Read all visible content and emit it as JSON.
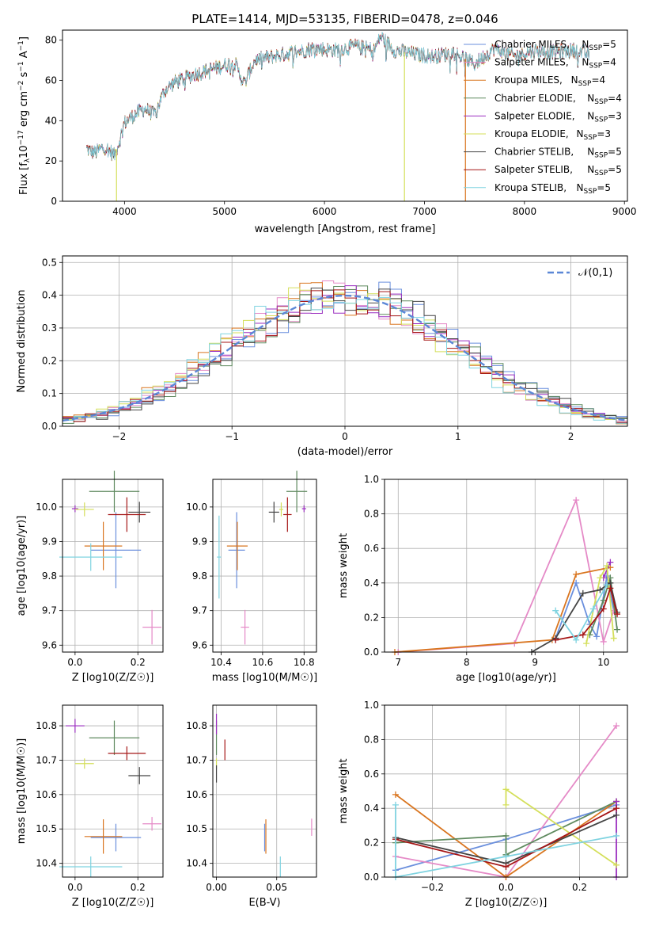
{
  "figure_title": "PLATE=1414, MJD=53135, FIBERID=0478, z=0.046",
  "models": [
    {
      "name": "Chabrier MILES",
      "nssp": "5",
      "color": "#6a8fdd"
    },
    {
      "name": "Salpeter MILES",
      "nssp": "4",
      "color": "#e58ac7"
    },
    {
      "name": "Kroupa MILES",
      "nssp": "4",
      "color": "#d9751f"
    },
    {
      "name": "Chabrier ELODIE",
      "nssp": "4",
      "color": "#5f8a5f"
    },
    {
      "name": "Salpeter ELODIE",
      "nssp": "3",
      "color": "#9b2fc0"
    },
    {
      "name": "Kroupa ELODIE",
      "nssp": "3",
      "color": "#d4df5a"
    },
    {
      "name": "Chabrier STELIB",
      "nssp": "5",
      "color": "#444444"
    },
    {
      "name": "Salpeter STELIB",
      "nssp": "5",
      "color": "#a51616"
    },
    {
      "name": "Kroupa STELIB",
      "nssp": "5",
      "color": "#7fd3e0"
    }
  ],
  "chart_data": [
    {
      "type": "line",
      "id": "spectrum",
      "title": "PLATE=1414, MJD=53135, FIBERID=0478, z=0.046",
      "xlabel": "wavelength [Angstrom, rest frame]",
      "ylabel": "Flux [f_λ 10^-17 erg cm^-2 s^-1 A^-1]",
      "xlim": [
        3380,
        9030
      ],
      "ylim": [
        0,
        85
      ],
      "xticks": [
        "4000",
        "5000",
        "6000",
        "7000",
        "8000",
        "9000"
      ],
      "yticks": [
        "0",
        "20",
        "40",
        "60",
        "80"
      ],
      "spectrum_shape": {
        "x": [
          3620,
          3700,
          3800,
          3900,
          3950,
          4000,
          4100,
          4200,
          4300,
          4400,
          4500,
          4700,
          4900,
          5100,
          5200,
          5300,
          5500,
          5700,
          5900,
          6100,
          6300,
          6500,
          6560,
          6700,
          6900,
          7100,
          7300,
          7500,
          7700,
          7900,
          8100,
          8300,
          8500,
          8650
        ],
        "y": [
          26,
          24,
          27,
          23,
          30,
          39,
          43,
          46,
          43,
          55,
          59,
          63,
          66,
          69,
          58,
          70,
          72,
          74,
          76,
          75,
          77,
          75,
          82,
          75,
          73,
          72,
          74,
          68,
          76,
          72,
          75,
          74,
          75,
          73
        ]
      },
      "dropouts": [
        {
          "x": 3920,
          "color": "#d4df5a"
        },
        {
          "x": 6800,
          "color": "#d4df5a"
        },
        {
          "x": 7410,
          "color": "#d9751f"
        }
      ],
      "legend_position": "top-right"
    },
    {
      "type": "histogram",
      "id": "residuals",
      "xlabel": "(data-model)/error",
      "ylabel": "Normed distribution",
      "xlim": [
        -2.5,
        2.5
      ],
      "ylim": [
        0,
        0.52
      ],
      "xticks": [
        "−2",
        "−1",
        "0",
        "1",
        "2"
      ],
      "yticks": [
        "0.0",
        "0.1",
        "0.2",
        "0.3",
        "0.4",
        "0.5"
      ],
      "bin_width": 0.1,
      "reference_curve": {
        "label": "𝒩(0,1)",
        "mean": 0,
        "sigma": 1,
        "color": "#5b87d6"
      },
      "legend_position": "top-right",
      "grid": true
    },
    {
      "type": "scatter",
      "id": "z_vs_age",
      "xlabel": "Z [log10(Z/Z☉)]",
      "ylabel": "age [log10(age/yr)]",
      "xlim": [
        -0.04,
        0.28
      ],
      "ylim": [
        9.58,
        10.08
      ],
      "xticks": [
        "0.0",
        "0.2"
      ],
      "yticks": [
        "9.6",
        "9.7",
        "9.8",
        "9.9",
        "10.0"
      ],
      "points": [
        {
          "model": 0,
          "x": 0.13,
          "xerr": 0.08,
          "y": 9.875,
          "yerr": 0.11
        },
        {
          "model": 1,
          "x": 0.245,
          "xerr": 0.03,
          "y": 9.652,
          "yerr": 0.05
        },
        {
          "model": 2,
          "x": 0.09,
          "xerr": 0.06,
          "y": 9.887,
          "yerr": 0.07
        },
        {
          "model": 3,
          "x": 0.125,
          "xerr": 0.08,
          "y": 10.045,
          "yerr": 0.06
        },
        {
          "model": 4,
          "x": 0.0,
          "xerr": 0.01,
          "y": 9.995,
          "yerr": 0.01
        },
        {
          "model": 5,
          "x": 0.03,
          "xerr": 0.03,
          "y": 9.993,
          "yerr": 0.02
        },
        {
          "model": 6,
          "x": 0.205,
          "xerr": 0.035,
          "y": 9.985,
          "yerr": 0.03
        },
        {
          "model": 7,
          "x": 0.165,
          "xerr": 0.06,
          "y": 9.978,
          "yerr": 0.05
        },
        {
          "model": 8,
          "x": 0.05,
          "xerr": 0.1,
          "y": 9.855,
          "yerr": 0.04
        }
      ],
      "grid": true
    },
    {
      "type": "scatter",
      "id": "mass_vs_age",
      "xlabel": "mass [log10(M/M☉)]",
      "ylabel": "",
      "xlim": [
        10.36,
        10.86
      ],
      "ylim": [
        9.58,
        10.08
      ],
      "xticks": [
        "10.4",
        "10.6",
        "10.8"
      ],
      "yticks": [
        "9.6",
        "9.7",
        "9.8",
        "9.9",
        "10.0"
      ],
      "points": [
        {
          "model": 0,
          "x": 10.475,
          "xerr": 0.04,
          "y": 9.875,
          "yerr": 0.11
        },
        {
          "model": 1,
          "x": 10.515,
          "xerr": 0.02,
          "y": 9.652,
          "yerr": 0.05
        },
        {
          "model": 2,
          "x": 10.478,
          "xerr": 0.05,
          "y": 9.887,
          "yerr": 0.07
        },
        {
          "model": 3,
          "x": 10.765,
          "xerr": 0.05,
          "y": 10.045,
          "yerr": 0.06
        },
        {
          "model": 4,
          "x": 10.8,
          "xerr": 0.01,
          "y": 9.995,
          "yerr": 0.01
        },
        {
          "model": 5,
          "x": 10.69,
          "xerr": 0.01,
          "y": 9.993,
          "yerr": 0.02
        },
        {
          "model": 6,
          "x": 10.655,
          "xerr": 0.025,
          "y": 9.985,
          "yerr": 0.03
        },
        {
          "model": 7,
          "x": 10.72,
          "xerr": 0.02,
          "y": 9.978,
          "yerr": 0.05
        },
        {
          "model": 8,
          "x": 10.39,
          "xerr": 0.01,
          "y": 9.855,
          "yerr": 0.12
        }
      ],
      "grid": true
    },
    {
      "type": "line",
      "id": "age_weights",
      "xlabel": "age [log10(age/yr)]",
      "ylabel": "mass weight",
      "xlim": [
        6.8,
        10.35
      ],
      "ylim": [
        0,
        1.0
      ],
      "xticks": [
        "7",
        "8",
        "9",
        "10"
      ],
      "yticks": [
        "0.0",
        "0.2",
        "0.4",
        "0.6",
        "0.8",
        "1.0"
      ],
      "series": [
        {
          "model": 0,
          "x": [
            9.3,
            9.6,
            9.8,
            9.9,
            10.05,
            10.15
          ],
          "y": [
            0.08,
            0.4,
            0.16,
            0.09,
            0.44,
            0.24
          ]
        },
        {
          "model": 1,
          "x": [
            7.0,
            8.7,
            9.6,
            10.0,
            10.15
          ],
          "y": [
            0.0,
            0.05,
            0.88,
            0.06,
            0.24
          ]
        },
        {
          "model": 2,
          "x": [
            6.95,
            9.25,
            9.6,
            10.1
          ],
          "y": [
            0.0,
            0.07,
            0.45,
            0.49
          ]
        },
        {
          "model": 3,
          "x": [
            9.8,
            10.0,
            10.1,
            10.2
          ],
          "y": [
            0.1,
            0.3,
            0.43,
            0.13
          ]
        },
        {
          "model": 4,
          "x": [
            10.0,
            10.1
          ],
          "y": [
            0.43,
            0.52
          ]
        },
        {
          "model": 5,
          "x": [
            9.75,
            9.95,
            10.05,
            10.15
          ],
          "y": [
            0.05,
            0.43,
            0.5,
            0.08
          ]
        },
        {
          "model": 6,
          "x": [
            8.95,
            9.3,
            9.7,
            9.95,
            10.1,
            10.2
          ],
          "y": [
            0.0,
            0.08,
            0.34,
            0.36,
            0.4,
            0.23
          ]
        },
        {
          "model": 7,
          "x": [
            9.3,
            9.7,
            10.0,
            10.1,
            10.2
          ],
          "y": [
            0.07,
            0.1,
            0.25,
            0.37,
            0.22
          ]
        },
        {
          "model": 8,
          "x": [
            9.3,
            9.6,
            9.85,
            10.05
          ],
          "y": [
            0.24,
            0.07,
            0.25,
            0.39
          ]
        }
      ],
      "marker": "+",
      "grid": true
    },
    {
      "type": "scatter",
      "id": "z_vs_mass",
      "xlabel": "Z [log10(Z/Z☉)]",
      "ylabel": "mass [log10(M/M☉)]",
      "xlim": [
        -0.04,
        0.28
      ],
      "ylim": [
        10.36,
        10.86
      ],
      "xticks": [
        "0.0",
        "0.2"
      ],
      "yticks": [
        "10.4",
        "10.5",
        "10.6",
        "10.7",
        "10.8"
      ],
      "points": [
        {
          "model": 0,
          "x": 0.13,
          "xerr": 0.08,
          "y": 10.475,
          "yerr": 0.04
        },
        {
          "model": 1,
          "x": 0.245,
          "xerr": 0.03,
          "y": 10.515,
          "yerr": 0.02
        },
        {
          "model": 2,
          "x": 0.09,
          "xerr": 0.06,
          "y": 10.478,
          "yerr": 0.05
        },
        {
          "model": 3,
          "x": 0.125,
          "xerr": 0.08,
          "y": 10.765,
          "yerr": 0.05
        },
        {
          "model": 4,
          "x": 0.0,
          "xerr": 0.03,
          "y": 10.8,
          "yerr": 0.02
        },
        {
          "model": 5,
          "x": 0.03,
          "xerr": 0.03,
          "y": 10.69,
          "yerr": 0.015
        },
        {
          "model": 6,
          "x": 0.205,
          "xerr": 0.035,
          "y": 10.655,
          "yerr": 0.025
        },
        {
          "model": 7,
          "x": 0.165,
          "xerr": 0.06,
          "y": 10.72,
          "yerr": 0.02
        },
        {
          "model": 8,
          "x": 0.05,
          "xerr": 0.1,
          "y": 10.39,
          "yerr": 0.03
        }
      ],
      "grid": true
    },
    {
      "type": "scatter",
      "id": "ebv_vs_mass",
      "xlabel": "E(B-V)",
      "ylabel": "",
      "xlim": [
        -0.003,
        0.083
      ],
      "ylim": [
        10.36,
        10.86
      ],
      "xticks": [
        "0.00",
        "0.05"
      ],
      "yticks": [
        "10.4",
        "10.5",
        "10.6",
        "10.7",
        "10.8"
      ],
      "points": [
        {
          "model": 0,
          "x": 0.04,
          "xerr": 0,
          "y": 10.475,
          "yerr": 0.04
        },
        {
          "model": 1,
          "x": 0.079,
          "xerr": 0,
          "y": 10.505,
          "yerr": 0.025
        },
        {
          "model": 2,
          "x": 0.041,
          "xerr": 0,
          "y": 10.478,
          "yerr": 0.05
        },
        {
          "model": 3,
          "x": 0.0,
          "xerr": 0,
          "y": 10.765,
          "yerr": 0.05
        },
        {
          "model": 4,
          "x": 0.0,
          "xerr": 0,
          "y": 10.805,
          "yerr": 0.03
        },
        {
          "model": 5,
          "x": 0.0,
          "xerr": 0,
          "y": 10.69,
          "yerr": 0.015
        },
        {
          "model": 6,
          "x": 0.0,
          "xerr": 0,
          "y": 10.66,
          "yerr": 0.025
        },
        {
          "model": 7,
          "x": 0.007,
          "xerr": 0,
          "y": 10.73,
          "yerr": 0.03
        },
        {
          "model": 8,
          "x": 0.053,
          "xerr": 0,
          "y": 10.39,
          "yerr": 0.03
        }
      ],
      "grid": true
    },
    {
      "type": "line",
      "id": "z_weights",
      "xlabel": "Z [log10(Z/Z☉)]",
      "ylabel": "mass weight",
      "xlim": [
        -0.33,
        0.33
      ],
      "ylim": [
        0,
        1.0
      ],
      "xticks": [
        "−0.2",
        "0.0",
        "0.2"
      ],
      "yticks": [
        "0.0",
        "0.2",
        "0.4",
        "0.6",
        "0.8",
        "1.0"
      ],
      "series": [
        {
          "model": 0,
          "x": [
            -0.3,
            0.0,
            0.3
          ],
          "y": [
            0.04,
            0.22,
            0.42
          ]
        },
        {
          "model": 1,
          "x": [
            -0.3,
            0.0,
            0.3
          ],
          "y": [
            0.12,
            0.0,
            0.88
          ]
        },
        {
          "model": 2,
          "x": [
            -0.3,
            0.0,
            0.3
          ],
          "y": [
            0.48,
            0.0,
            0.44
          ]
        },
        {
          "model": 3,
          "x": [
            -0.3,
            0.0,
            0.0,
            0.3
          ],
          "y": [
            0.2,
            0.24,
            0.13,
            0.44
          ]
        },
        {
          "model": 4,
          "x": [
            0.3,
            0.3
          ],
          "y": [
            0.0,
            0.44
          ]
        },
        {
          "model": 5,
          "x": [
            0.0,
            0.0,
            0.3
          ],
          "y": [
            0.42,
            0.51,
            0.07
          ]
        },
        {
          "model": 6,
          "x": [
            -0.3,
            0.0,
            0.3
          ],
          "y": [
            0.23,
            0.08,
            0.36
          ]
        },
        {
          "model": 7,
          "x": [
            -0.3,
            0.0,
            0.3
          ],
          "y": [
            0.22,
            0.06,
            0.4
          ]
        },
        {
          "model": 8,
          "x": [
            -0.3,
            -0.3,
            0.0,
            0.3
          ],
          "y": [
            0.42,
            0.0,
            0.12,
            0.24
          ]
        }
      ],
      "marker": "+",
      "grid": true
    }
  ]
}
